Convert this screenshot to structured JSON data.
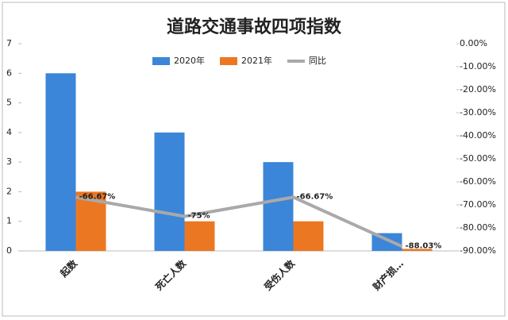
{
  "chart_data": {
    "type": "bar-line",
    "title": "道路交通事故四项指数",
    "categories": [
      "起数",
      "死亡人数",
      "受伤人数",
      "财产损…"
    ],
    "series": [
      {
        "name": "2020年",
        "color": "#3b86d8",
        "type": "bar",
        "values": [
          6,
          4,
          3,
          0.6
        ]
      },
      {
        "name": "2021年",
        "color": "#ec7722",
        "type": "bar",
        "values": [
          2,
          1,
          1,
          0.07
        ]
      },
      {
        "name": "同比",
        "color": "#a9a9a9",
        "type": "line",
        "axis": "y2",
        "values": [
          -66.67,
          -75,
          -66.67,
          -88.03
        ],
        "value_labels": [
          "-66.67%",
          "-75%",
          "-66.67%",
          "-88.03%"
        ]
      }
    ],
    "ylim": [
      0,
      7
    ],
    "yticks": [
      0,
      1,
      2,
      3,
      4,
      5,
      6,
      7
    ],
    "y2lim": [
      -90,
      0
    ],
    "y2ticks": [
      {
        "value": 0,
        "label": "0.00%"
      },
      {
        "value": -10,
        "label": "-10.00%"
      },
      {
        "value": -20,
        "label": "-20.00%"
      },
      {
        "value": -30,
        "label": "-30.00%"
      },
      {
        "value": -40,
        "label": "-40.00%"
      },
      {
        "value": -50,
        "label": "-50.00%"
      },
      {
        "value": -60,
        "label": "-60.00%"
      },
      {
        "value": -70,
        "label": "-70.00%"
      },
      {
        "value": -80,
        "label": "-80.00%"
      },
      {
        "value": -90,
        "label": "-90.00%"
      }
    ],
    "legend": "top"
  }
}
